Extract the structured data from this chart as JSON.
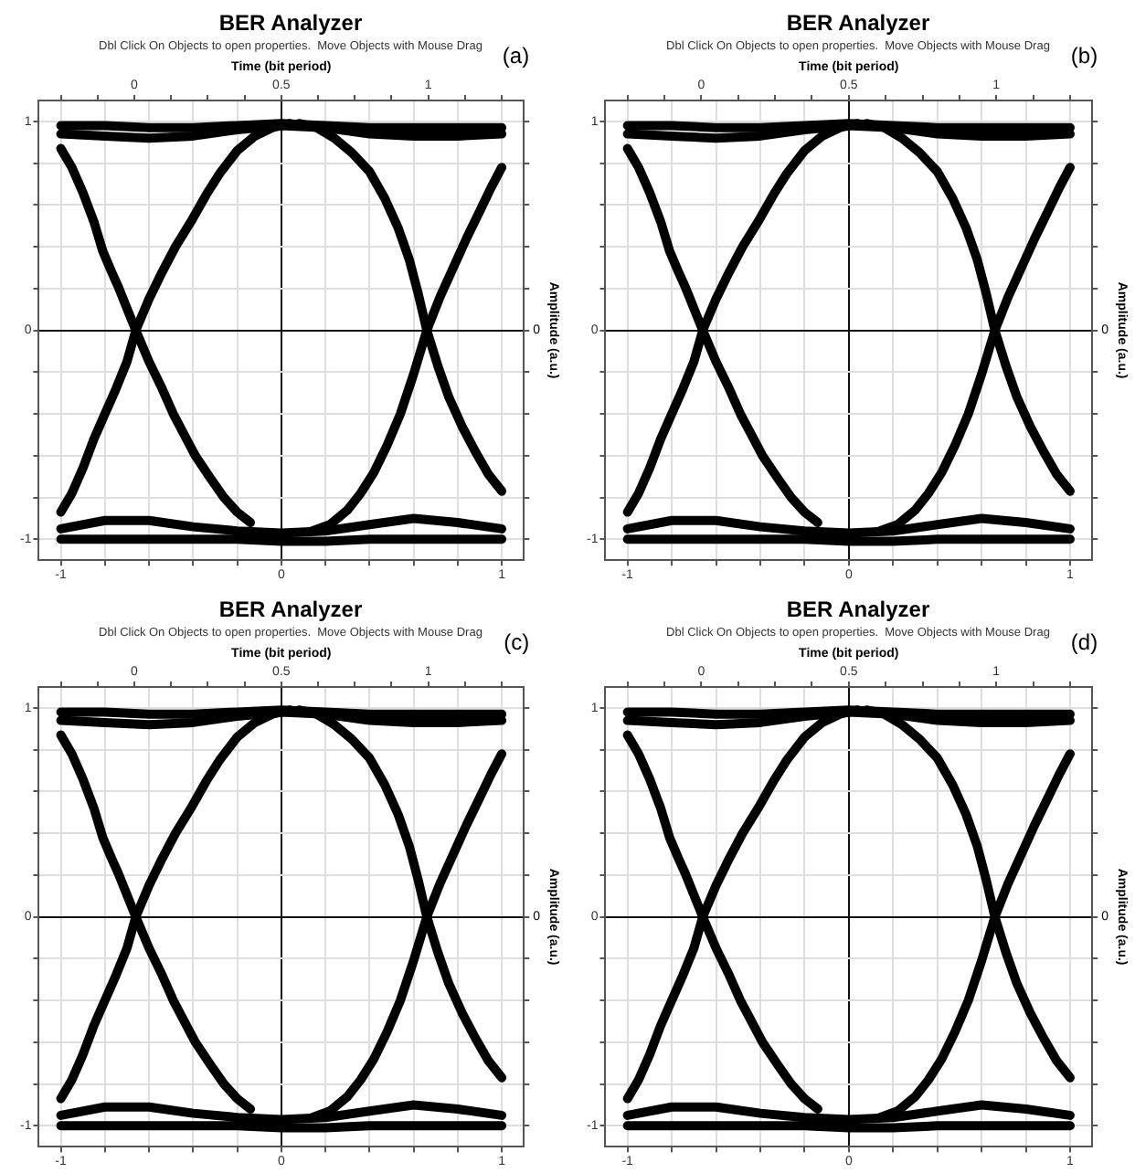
{
  "chart_data": [
    {
      "type": "line",
      "title": "BER Analyzer",
      "subtitle": "Dbl Click On Objects to open properties.  Move Objects with Mouse Drag",
      "x2label": "Time (bit period)",
      "y2label": "Amplitude (a.u.)",
      "annotations": [
        "(a)",
        "0"
      ],
      "xlim": [
        -1.1,
        1.1
      ],
      "xticks": [
        -1,
        {
          "value": -0.8,
          "label": null
        },
        {
          "value": -0.6,
          "label": null
        },
        {
          "value": -0.4,
          "label": null
        },
        {
          "value": -0.2,
          "label": null
        },
        0,
        {
          "value": 0.2,
          "label": null
        },
        {
          "value": 0.4,
          "label": null
        },
        {
          "value": 0.6,
          "label": null
        },
        {
          "value": 0.8,
          "label": null
        },
        1
      ],
      "x2lim": [
        -0.325,
        1.325
      ],
      "x2ticks": [
        {
          "value": -0.25,
          "label": null
        },
        {
          "value": -0.125,
          "label": null
        },
        0,
        {
          "value": 0.125,
          "label": null
        },
        {
          "value": 0.25,
          "label": null
        },
        {
          "value": 0.375,
          "label": null
        },
        0.5,
        {
          "value": 0.625,
          "label": null
        },
        {
          "value": 0.75,
          "label": null
        },
        {
          "value": 0.875,
          "label": null
        },
        1,
        {
          "value": 1.125,
          "label": null
        },
        {
          "value": 1.25,
          "label": null
        }
      ],
      "ylim": [
        -1.1,
        1.1
      ],
      "yticks": [
        -1,
        {
          "value": -0.8,
          "label": null
        },
        {
          "value": -0.6,
          "label": null
        },
        {
          "value": -0.4,
          "label": null
        },
        {
          "value": -0.2,
          "label": null
        },
        0,
        {
          "value": 0.2,
          "label": null
        },
        {
          "value": 0.4,
          "label": null
        },
        {
          "value": 0.6,
          "label": null
        },
        {
          "value": 0.8,
          "label": null
        },
        1
      ],
      "grid": true,
      "series": [
        {
          "color": "#000000",
          "x": [
            -1,
            -0.8,
            -0.6,
            -0.4,
            -0.2,
            0,
            0.2,
            0.4,
            0.6,
            0.8,
            1
          ],
          "values": [
            0.98,
            0.98,
            0.97,
            0.97,
            0.98,
            0.99,
            0.98,
            0.97,
            0.97,
            0.97,
            0.97
          ]
        },
        {
          "color": "#000000",
          "x": [
            -1,
            -0.8,
            -0.6,
            -0.4,
            -0.2,
            0,
            0.2,
            0.4,
            0.6,
            0.8,
            1
          ],
          "values": [
            0.94,
            0.93,
            0.92,
            0.93,
            0.96,
            0.98,
            0.97,
            0.94,
            0.93,
            0.93,
            0.94
          ]
        },
        {
          "color": "#000000",
          "x": [
            -1,
            -0.8,
            -0.6,
            -0.4,
            -0.2,
            0,
            0.2,
            0.4,
            0.6,
            0.8,
            1
          ],
          "values": [
            -1,
            -1,
            -1,
            -1,
            -1,
            -1.01,
            -1.01,
            -1,
            -1,
            -1,
            -1
          ]
        },
        {
          "color": "#000000",
          "x": [
            -1,
            -0.8,
            -0.6,
            -0.4,
            -0.2,
            0,
            0.2,
            0.4,
            0.6,
            0.8,
            1
          ],
          "values": [
            -0.95,
            -0.91,
            -0.91,
            -0.94,
            -0.96,
            -0.97,
            -0.96,
            -0.93,
            -0.9,
            -0.92,
            -0.95
          ]
        },
        {
          "color": "#000000",
          "x": [
            -1,
            -0.95,
            -0.9,
            -0.85,
            -0.81,
            -0.77,
            -0.74,
            -0.66,
            -0.6,
            -0.54,
            -0.49,
            -0.44,
            -0.39,
            -0.32,
            -0.26,
            -0.2,
            -0.14
          ],
          "values": [
            0.87,
            0.78,
            0.66,
            0.52,
            0.38,
            0.28,
            0.21,
            0,
            -0.15,
            -0.28,
            -0.4,
            -0.5,
            -0.6,
            -0.71,
            -0.8,
            -0.87,
            -0.92
          ]
        },
        {
          "color": "#000000",
          "x": [
            -1,
            -0.95,
            -0.9,
            -0.85,
            -0.8,
            -0.75,
            -0.7,
            -0.66,
            -0.6,
            -0.54,
            -0.48,
            -0.41,
            -0.34,
            -0.28,
            -0.2,
            -0.12,
            -0.04,
            0.04
          ],
          "values": [
            -0.87,
            -0.78,
            -0.66,
            -0.52,
            -0.4,
            -0.28,
            -0.15,
            0,
            0.15,
            0.28,
            0.4,
            0.52,
            0.65,
            0.75,
            0.86,
            0.93,
            0.97,
            0.99
          ]
        },
        {
          "color": "#000000",
          "x": [
            0.08,
            0.16,
            0.24,
            0.32,
            0.4,
            0.47,
            0.53,
            0.58,
            0.62,
            0.66,
            0.71,
            0.76,
            0.82,
            0.88,
            0.94,
            1
          ],
          "values": [
            0.99,
            0.97,
            0.92,
            0.85,
            0.76,
            0.63,
            0.49,
            0.34,
            0.18,
            0,
            -0.17,
            -0.32,
            -0.46,
            -0.58,
            -0.69,
            -0.77
          ]
        },
        {
          "color": "#000000",
          "x": [
            0.14,
            0.22,
            0.3,
            0.36,
            0.42,
            0.48,
            0.54,
            0.6,
            0.66,
            0.72,
            0.78,
            0.84,
            0.9,
            0.95,
            1
          ],
          "values": [
            -0.96,
            -0.93,
            -0.86,
            -0.78,
            -0.68,
            -0.55,
            -0.4,
            -0.21,
            0,
            0.16,
            0.3,
            0.44,
            0.57,
            0.68,
            0.78
          ]
        }
      ]
    },
    {
      "type": "line",
      "title": "BER Analyzer",
      "subtitle": "Dbl Click On Objects to open properties.  Move Objects with Mouse Drag",
      "x2label": "Time (bit period)",
      "y2label": "Amplitude (a.u.)",
      "annotations": [
        "(b)",
        "0"
      ],
      "xlim": [
        -1.1,
        1.1
      ],
      "xticks": [
        -1,
        {
          "value": -0.8,
          "label": null
        },
        {
          "value": -0.6,
          "label": null
        },
        {
          "value": -0.4,
          "label": null
        },
        {
          "value": -0.2,
          "label": null
        },
        0,
        {
          "value": 0.2,
          "label": null
        },
        {
          "value": 0.4,
          "label": null
        },
        {
          "value": 0.6,
          "label": null
        },
        {
          "value": 0.8,
          "label": null
        },
        1
      ],
      "x2lim": [
        -0.325,
        1.325
      ],
      "x2ticks": [
        {
          "value": -0.25,
          "label": null
        },
        {
          "value": -0.125,
          "label": null
        },
        0,
        {
          "value": 0.125,
          "label": null
        },
        {
          "value": 0.25,
          "label": null
        },
        {
          "value": 0.375,
          "label": null
        },
        0.5,
        {
          "value": 0.625,
          "label": null
        },
        {
          "value": 0.75,
          "label": null
        },
        {
          "value": 0.875,
          "label": null
        },
        1,
        {
          "value": 1.125,
          "label": null
        },
        {
          "value": 1.25,
          "label": null
        }
      ],
      "ylim": [
        -1.1,
        1.1
      ],
      "yticks": [
        -1,
        {
          "value": -0.8,
          "label": null
        },
        {
          "value": -0.6,
          "label": null
        },
        {
          "value": -0.4,
          "label": null
        },
        {
          "value": -0.2,
          "label": null
        },
        0,
        {
          "value": 0.2,
          "label": null
        },
        {
          "value": 0.4,
          "label": null
        },
        {
          "value": 0.6,
          "label": null
        },
        {
          "value": 0.8,
          "label": null
        },
        1
      ],
      "grid": true,
      "series": [
        {
          "color": "#000000",
          "x": [
            -1,
            -0.8,
            -0.6,
            -0.4,
            -0.2,
            0,
            0.2,
            0.4,
            0.6,
            0.8,
            1
          ],
          "values": [
            0.98,
            0.98,
            0.97,
            0.97,
            0.98,
            0.99,
            0.98,
            0.97,
            0.97,
            0.97,
            0.97
          ]
        },
        {
          "color": "#000000",
          "x": [
            -1,
            -0.8,
            -0.6,
            -0.4,
            -0.2,
            0,
            0.2,
            0.4,
            0.6,
            0.8,
            1
          ],
          "values": [
            0.94,
            0.93,
            0.92,
            0.93,
            0.96,
            0.98,
            0.97,
            0.94,
            0.93,
            0.93,
            0.94
          ]
        },
        {
          "color": "#000000",
          "x": [
            -1,
            -0.8,
            -0.6,
            -0.4,
            -0.2,
            0,
            0.2,
            0.4,
            0.6,
            0.8,
            1
          ],
          "values": [
            -1,
            -1,
            -1,
            -1,
            -1,
            -1.01,
            -1.01,
            -1,
            -1,
            -1,
            -1
          ]
        },
        {
          "color": "#000000",
          "x": [
            -1,
            -0.8,
            -0.6,
            -0.4,
            -0.2,
            0,
            0.2,
            0.4,
            0.6,
            0.8,
            1
          ],
          "values": [
            -0.95,
            -0.91,
            -0.91,
            -0.94,
            -0.96,
            -0.97,
            -0.96,
            -0.93,
            -0.9,
            -0.92,
            -0.95
          ]
        },
        {
          "color": "#000000",
          "x": [
            -1,
            -0.95,
            -0.9,
            -0.85,
            -0.81,
            -0.77,
            -0.74,
            -0.66,
            -0.6,
            -0.54,
            -0.49,
            -0.44,
            -0.39,
            -0.32,
            -0.26,
            -0.2,
            -0.14
          ],
          "values": [
            0.87,
            0.78,
            0.66,
            0.52,
            0.38,
            0.28,
            0.21,
            0,
            -0.15,
            -0.28,
            -0.4,
            -0.5,
            -0.6,
            -0.71,
            -0.8,
            -0.87,
            -0.92
          ]
        },
        {
          "color": "#000000",
          "x": [
            -1,
            -0.95,
            -0.9,
            -0.85,
            -0.8,
            -0.75,
            -0.7,
            -0.66,
            -0.6,
            -0.54,
            -0.48,
            -0.41,
            -0.34,
            -0.28,
            -0.2,
            -0.12,
            -0.04,
            0.04
          ],
          "values": [
            -0.87,
            -0.78,
            -0.66,
            -0.52,
            -0.4,
            -0.28,
            -0.15,
            0,
            0.15,
            0.28,
            0.4,
            0.52,
            0.65,
            0.75,
            0.86,
            0.93,
            0.97,
            0.99
          ]
        },
        {
          "color": "#000000",
          "x": [
            0.08,
            0.16,
            0.24,
            0.32,
            0.4,
            0.47,
            0.53,
            0.58,
            0.62,
            0.66,
            0.71,
            0.76,
            0.82,
            0.88,
            0.94,
            1
          ],
          "values": [
            0.99,
            0.97,
            0.92,
            0.85,
            0.76,
            0.63,
            0.49,
            0.34,
            0.18,
            0,
            -0.17,
            -0.32,
            -0.46,
            -0.58,
            -0.69,
            -0.77
          ]
        },
        {
          "color": "#000000",
          "x": [
            0.14,
            0.22,
            0.3,
            0.36,
            0.42,
            0.48,
            0.54,
            0.6,
            0.66,
            0.72,
            0.78,
            0.84,
            0.9,
            0.95,
            1
          ],
          "values": [
            -0.96,
            -0.93,
            -0.86,
            -0.78,
            -0.68,
            -0.55,
            -0.4,
            -0.21,
            0,
            0.16,
            0.3,
            0.44,
            0.57,
            0.68,
            0.78
          ]
        }
      ]
    },
    {
      "type": "line",
      "title": "BER Analyzer",
      "subtitle": "Dbl Click On Objects to open properties.  Move Objects with Mouse Drag",
      "x2label": "Time (bit period)",
      "y2label": "Amplitude (a.u.)",
      "annotations": [
        "(c)",
        "0"
      ],
      "xlim": [
        -1.1,
        1.1
      ],
      "xticks": [
        -1,
        {
          "value": -0.8,
          "label": null
        },
        {
          "value": -0.6,
          "label": null
        },
        {
          "value": -0.4,
          "label": null
        },
        {
          "value": -0.2,
          "label": null
        },
        0,
        {
          "value": 0.2,
          "label": null
        },
        {
          "value": 0.4,
          "label": null
        },
        {
          "value": 0.6,
          "label": null
        },
        {
          "value": 0.8,
          "label": null
        },
        1
      ],
      "x2lim": [
        -0.325,
        1.325
      ],
      "x2ticks": [
        {
          "value": -0.25,
          "label": null
        },
        {
          "value": -0.125,
          "label": null
        },
        0,
        {
          "value": 0.125,
          "label": null
        },
        {
          "value": 0.25,
          "label": null
        },
        {
          "value": 0.375,
          "label": null
        },
        0.5,
        {
          "value": 0.625,
          "label": null
        },
        {
          "value": 0.75,
          "label": null
        },
        {
          "value": 0.875,
          "label": null
        },
        1,
        {
          "value": 1.125,
          "label": null
        },
        {
          "value": 1.25,
          "label": null
        }
      ],
      "ylim": [
        -1.1,
        1.1
      ],
      "yticks": [
        -1,
        {
          "value": -0.8,
          "label": null
        },
        {
          "value": -0.6,
          "label": null
        },
        {
          "value": -0.4,
          "label": null
        },
        {
          "value": -0.2,
          "label": null
        },
        0,
        {
          "value": 0.2,
          "label": null
        },
        {
          "value": 0.4,
          "label": null
        },
        {
          "value": 0.6,
          "label": null
        },
        {
          "value": 0.8,
          "label": null
        },
        1
      ],
      "grid": true,
      "series": [
        {
          "color": "#000000",
          "x": [
            -1,
            -0.8,
            -0.6,
            -0.4,
            -0.2,
            0,
            0.2,
            0.4,
            0.6,
            0.8,
            1
          ],
          "values": [
            0.98,
            0.98,
            0.97,
            0.97,
            0.98,
            0.99,
            0.98,
            0.97,
            0.97,
            0.97,
            0.97
          ]
        },
        {
          "color": "#000000",
          "x": [
            -1,
            -0.8,
            -0.6,
            -0.4,
            -0.2,
            0,
            0.2,
            0.4,
            0.6,
            0.8,
            1
          ],
          "values": [
            0.94,
            0.93,
            0.92,
            0.93,
            0.96,
            0.98,
            0.97,
            0.94,
            0.93,
            0.93,
            0.94
          ]
        },
        {
          "color": "#000000",
          "x": [
            -1,
            -0.8,
            -0.6,
            -0.4,
            -0.2,
            0,
            0.2,
            0.4,
            0.6,
            0.8,
            1
          ],
          "values": [
            -1,
            -1,
            -1,
            -1,
            -1,
            -1.01,
            -1.01,
            -1,
            -1,
            -1,
            -1
          ]
        },
        {
          "color": "#000000",
          "x": [
            -1,
            -0.8,
            -0.6,
            -0.4,
            -0.2,
            0,
            0.2,
            0.4,
            0.6,
            0.8,
            1
          ],
          "values": [
            -0.95,
            -0.91,
            -0.91,
            -0.94,
            -0.96,
            -0.97,
            -0.96,
            -0.93,
            -0.9,
            -0.92,
            -0.95
          ]
        },
        {
          "color": "#000000",
          "x": [
            -1,
            -0.95,
            -0.9,
            -0.85,
            -0.81,
            -0.77,
            -0.74,
            -0.66,
            -0.6,
            -0.54,
            -0.49,
            -0.44,
            -0.39,
            -0.32,
            -0.26,
            -0.2,
            -0.14
          ],
          "values": [
            0.87,
            0.78,
            0.66,
            0.52,
            0.38,
            0.28,
            0.21,
            0,
            -0.15,
            -0.28,
            -0.4,
            -0.5,
            -0.6,
            -0.71,
            -0.8,
            -0.87,
            -0.92
          ]
        },
        {
          "color": "#000000",
          "x": [
            -1,
            -0.95,
            -0.9,
            -0.85,
            -0.8,
            -0.75,
            -0.7,
            -0.66,
            -0.6,
            -0.54,
            -0.48,
            -0.41,
            -0.34,
            -0.28,
            -0.2,
            -0.12,
            -0.04,
            0.04
          ],
          "values": [
            -0.87,
            -0.78,
            -0.66,
            -0.52,
            -0.4,
            -0.28,
            -0.15,
            0,
            0.15,
            0.28,
            0.4,
            0.52,
            0.65,
            0.75,
            0.86,
            0.93,
            0.97,
            0.99
          ]
        },
        {
          "color": "#000000",
          "x": [
            0.08,
            0.16,
            0.24,
            0.32,
            0.4,
            0.47,
            0.53,
            0.58,
            0.62,
            0.66,
            0.71,
            0.76,
            0.82,
            0.88,
            0.94,
            1
          ],
          "values": [
            0.99,
            0.97,
            0.92,
            0.85,
            0.76,
            0.63,
            0.49,
            0.34,
            0.18,
            0,
            -0.17,
            -0.32,
            -0.46,
            -0.58,
            -0.69,
            -0.77
          ]
        },
        {
          "color": "#000000",
          "x": [
            0.14,
            0.22,
            0.3,
            0.36,
            0.42,
            0.48,
            0.54,
            0.6,
            0.66,
            0.72,
            0.78,
            0.84,
            0.9,
            0.95,
            1
          ],
          "values": [
            -0.96,
            -0.93,
            -0.86,
            -0.78,
            -0.68,
            -0.55,
            -0.4,
            -0.21,
            0,
            0.16,
            0.3,
            0.44,
            0.57,
            0.68,
            0.78
          ]
        }
      ]
    },
    {
      "type": "line",
      "title": "BER Analyzer",
      "subtitle": "Dbl Click On Objects to open properties.  Move Objects with Mouse Drag",
      "x2label": "Time (bit period)",
      "y2label": "Amplitude (a.u.)",
      "annotations": [
        "(d)",
        "0"
      ],
      "xlim": [
        -1.1,
        1.1
      ],
      "xticks": [
        -1,
        {
          "value": -0.8,
          "label": null
        },
        {
          "value": -0.6,
          "label": null
        },
        {
          "value": -0.4,
          "label": null
        },
        {
          "value": -0.2,
          "label": null
        },
        0,
        {
          "value": 0.2,
          "label": null
        },
        {
          "value": 0.4,
          "label": null
        },
        {
          "value": 0.6,
          "label": null
        },
        {
          "value": 0.8,
          "label": null
        },
        1
      ],
      "x2lim": [
        -0.325,
        1.325
      ],
      "x2ticks": [
        {
          "value": -0.25,
          "label": null
        },
        {
          "value": -0.125,
          "label": null
        },
        0,
        {
          "value": 0.125,
          "label": null
        },
        {
          "value": 0.25,
          "label": null
        },
        {
          "value": 0.375,
          "label": null
        },
        0.5,
        {
          "value": 0.625,
          "label": null
        },
        {
          "value": 0.75,
          "label": null
        },
        {
          "value": 0.875,
          "label": null
        },
        1,
        {
          "value": 1.125,
          "label": null
        },
        {
          "value": 1.25,
          "label": null
        }
      ],
      "ylim": [
        -1.1,
        1.1
      ],
      "yticks": [
        -1,
        {
          "value": -0.8,
          "label": null
        },
        {
          "value": -0.6,
          "label": null
        },
        {
          "value": -0.4,
          "label": null
        },
        {
          "value": -0.2,
          "label": null
        },
        0,
        {
          "value": 0.2,
          "label": null
        },
        {
          "value": 0.4,
          "label": null
        },
        {
          "value": 0.6,
          "label": null
        },
        {
          "value": 0.8,
          "label": null
        },
        1
      ],
      "grid": true,
      "series": [
        {
          "color": "#000000",
          "x": [
            -1,
            -0.8,
            -0.6,
            -0.4,
            -0.2,
            0,
            0.2,
            0.4,
            0.6,
            0.8,
            1
          ],
          "values": [
            0.98,
            0.98,
            0.97,
            0.97,
            0.98,
            0.99,
            0.98,
            0.97,
            0.97,
            0.97,
            0.97
          ]
        },
        {
          "color": "#000000",
          "x": [
            -1,
            -0.8,
            -0.6,
            -0.4,
            -0.2,
            0,
            0.2,
            0.4,
            0.6,
            0.8,
            1
          ],
          "values": [
            0.94,
            0.93,
            0.92,
            0.93,
            0.96,
            0.98,
            0.97,
            0.94,
            0.93,
            0.93,
            0.94
          ]
        },
        {
          "color": "#000000",
          "x": [
            -1,
            -0.8,
            -0.6,
            -0.4,
            -0.2,
            0,
            0.2,
            0.4,
            0.6,
            0.8,
            1
          ],
          "values": [
            -1,
            -1,
            -1,
            -1,
            -1,
            -1.01,
            -1.01,
            -1,
            -1,
            -1,
            -1
          ]
        },
        {
          "color": "#000000",
          "x": [
            -1,
            -0.8,
            -0.6,
            -0.4,
            -0.2,
            0,
            0.2,
            0.4,
            0.6,
            0.8,
            1
          ],
          "values": [
            -0.95,
            -0.91,
            -0.91,
            -0.94,
            -0.96,
            -0.97,
            -0.96,
            -0.93,
            -0.9,
            -0.92,
            -0.95
          ]
        },
        {
          "color": "#000000",
          "x": [
            -1,
            -0.95,
            -0.9,
            -0.85,
            -0.81,
            -0.77,
            -0.74,
            -0.66,
            -0.6,
            -0.54,
            -0.49,
            -0.44,
            -0.39,
            -0.32,
            -0.26,
            -0.2,
            -0.14
          ],
          "values": [
            0.87,
            0.78,
            0.66,
            0.52,
            0.38,
            0.28,
            0.21,
            0,
            -0.15,
            -0.28,
            -0.4,
            -0.5,
            -0.6,
            -0.71,
            -0.8,
            -0.87,
            -0.92
          ]
        },
        {
          "color": "#000000",
          "x": [
            -1,
            -0.95,
            -0.9,
            -0.85,
            -0.8,
            -0.75,
            -0.7,
            -0.66,
            -0.6,
            -0.54,
            -0.48,
            -0.41,
            -0.34,
            -0.28,
            -0.2,
            -0.12,
            -0.04,
            0.04
          ],
          "values": [
            -0.87,
            -0.78,
            -0.66,
            -0.52,
            -0.4,
            -0.28,
            -0.15,
            0,
            0.15,
            0.28,
            0.4,
            0.52,
            0.65,
            0.75,
            0.86,
            0.93,
            0.97,
            0.99
          ]
        },
        {
          "color": "#000000",
          "x": [
            0.08,
            0.16,
            0.24,
            0.32,
            0.4,
            0.47,
            0.53,
            0.58,
            0.62,
            0.66,
            0.71,
            0.76,
            0.82,
            0.88,
            0.94,
            1
          ],
          "values": [
            0.99,
            0.97,
            0.92,
            0.85,
            0.76,
            0.63,
            0.49,
            0.34,
            0.18,
            0,
            -0.17,
            -0.32,
            -0.46,
            -0.58,
            -0.69,
            -0.77
          ]
        },
        {
          "color": "#000000",
          "x": [
            0.14,
            0.22,
            0.3,
            0.36,
            0.42,
            0.48,
            0.54,
            0.6,
            0.66,
            0.72,
            0.78,
            0.84,
            0.9,
            0.95,
            1
          ],
          "values": [
            -0.96,
            -0.93,
            -0.86,
            -0.78,
            -0.68,
            -0.55,
            -0.4,
            -0.21,
            0,
            0.16,
            0.3,
            0.44,
            0.57,
            0.68,
            0.78
          ]
        }
      ]
    }
  ]
}
